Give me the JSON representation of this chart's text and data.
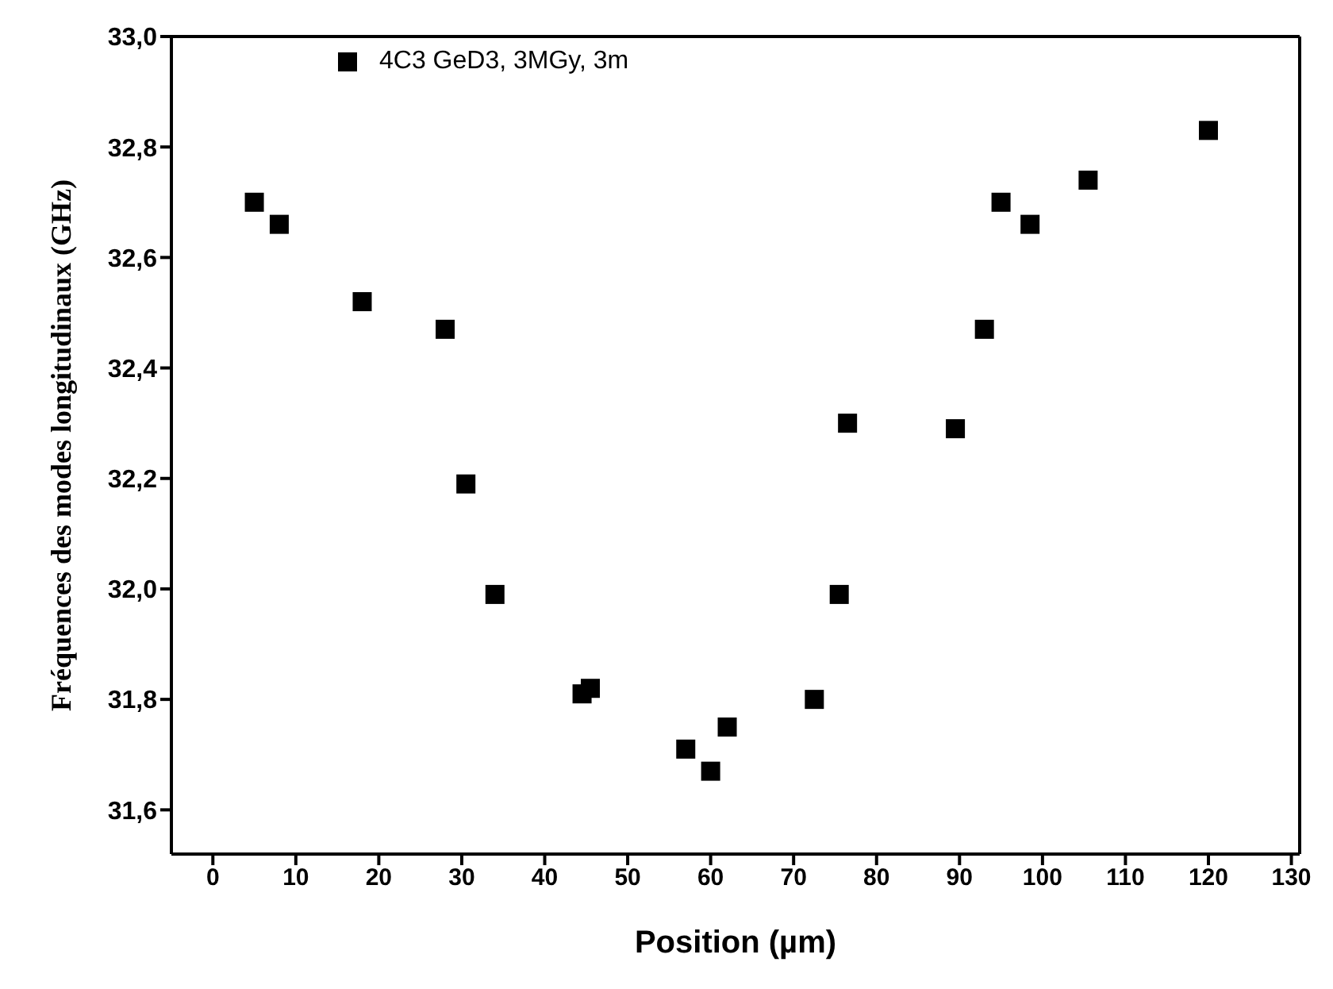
{
  "chart_data": {
    "type": "scatter",
    "xlabel": "Position (µm)",
    "ylabel": "Fréquences des modes longitudinaux  (GHz)",
    "x": [
      5,
      8,
      18,
      28,
      30.5,
      34,
      44.5,
      45.5,
      57,
      60,
      62,
      72.5,
      75.5,
      76.5,
      89.5,
      93,
      95,
      98.5,
      105.5,
      120
    ],
    "series": [
      {
        "name": "4C3 GeD3, 3MGy, 3m",
        "color": "#000000",
        "values": [
          32.7,
          32.66,
          32.52,
          32.47,
          32.19,
          31.99,
          31.81,
          31.82,
          31.71,
          31.67,
          31.75,
          31.8,
          31.99,
          32.3,
          32.29,
          32.47,
          32.7,
          32.66,
          32.74,
          32.83
        ]
      }
    ],
    "xlim": [
      -5,
      131
    ],
    "xticks": [
      0,
      10,
      20,
      30,
      40,
      50,
      60,
      70,
      80,
      90,
      100,
      110,
      120,
      130
    ],
    "ylim": [
      31.52,
      33.0
    ],
    "yticks": [
      {
        "value": 31.6,
        "label": "31,6"
      },
      {
        "value": 31.8,
        "label": "31,8"
      },
      {
        "value": 32.0,
        "label": "32,0"
      },
      {
        "value": 32.2,
        "label": "32,2"
      },
      {
        "value": 32.4,
        "label": "32,4"
      },
      {
        "value": 32.6,
        "label": "32,6"
      },
      {
        "value": 32.8,
        "label": "32,8"
      },
      {
        "value": 33.0,
        "label": "33,0"
      }
    ],
    "marker": "square",
    "grid": false,
    "legend": "top left"
  }
}
